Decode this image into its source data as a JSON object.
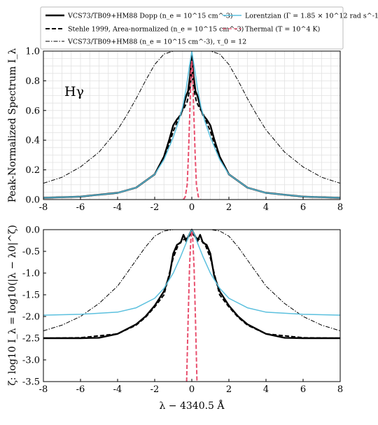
{
  "chart_data": [
    {
      "type": "line",
      "annotation": "Hγ",
      "xlabel": "",
      "ylabel": "Peak-Normalized Spectrum I_λ",
      "xlim": [
        -8,
        8
      ],
      "ylim": [
        0,
        1
      ],
      "xticks": [
        "-8",
        "-6",
        "-4",
        "-2",
        "0",
        "2",
        "4",
        "6",
        "8"
      ],
      "yticks": [
        "0.0",
        "0.2",
        "0.4",
        "0.6",
        "0.8",
        "1.0"
      ],
      "grid": true,
      "series": [
        {
          "name": "VCS73/TB09+HM88 Dopp (n_e = 10^15 cm^-3)",
          "color": "#000000",
          "style": "solid-thick",
          "x": [
            -8,
            -6,
            -4,
            -3,
            -2,
            -1.5,
            -1.2,
            -1.0,
            -0.8,
            -0.6,
            -0.45,
            -0.3,
            -0.2,
            -0.1,
            -0.05,
            0,
            0.05,
            0.1,
            0.2,
            0.3,
            0.45,
            0.6,
            0.8,
            1.0,
            1.2,
            1.5,
            2,
            3,
            4,
            6,
            8
          ],
          "y": [
            0.012,
            0.02,
            0.045,
            0.08,
            0.17,
            0.29,
            0.41,
            0.5,
            0.54,
            0.57,
            0.63,
            0.7,
            0.73,
            0.83,
            0.9,
            0.97,
            0.9,
            0.83,
            0.73,
            0.7,
            0.63,
            0.57,
            0.54,
            0.5,
            0.41,
            0.29,
            0.17,
            0.08,
            0.045,
            0.02,
            0.012
          ]
        },
        {
          "name": "Stehle 1999, Area-normalized (n_e = 10^15 cm^-3)",
          "color": "#000000",
          "style": "dashed",
          "x": [
            -8,
            -6,
            -4,
            -3,
            -2,
            -1.5,
            -1.2,
            -1.0,
            -0.8,
            -0.6,
            -0.4,
            -0.25,
            -0.1,
            0,
            0.1,
            0.25,
            0.4,
            0.6,
            0.8,
            1.0,
            1.2,
            1.5,
            2,
            3,
            4,
            6,
            8
          ],
          "y": [
            0.012,
            0.02,
            0.045,
            0.08,
            0.17,
            0.28,
            0.38,
            0.46,
            0.52,
            0.58,
            0.62,
            0.66,
            0.75,
            0.86,
            0.75,
            0.66,
            0.62,
            0.58,
            0.52,
            0.46,
            0.38,
            0.28,
            0.17,
            0.08,
            0.045,
            0.02,
            0.012
          ]
        },
        {
          "name": "VCS73/TB09+HM88 (n_e = 10^15 cm^-3), τ_0 = 12",
          "color": "#000000",
          "style": "dashdot",
          "x": [
            -8,
            -7,
            -6,
            -5,
            -4,
            -3.5,
            -3,
            -2.5,
            -2,
            -1.5,
            -1,
            -0.5,
            0,
            0.5,
            1,
            1.5,
            2,
            2.5,
            3,
            3.5,
            4,
            5,
            6,
            7,
            8
          ],
          "y": [
            0.11,
            0.15,
            0.22,
            0.32,
            0.47,
            0.57,
            0.68,
            0.8,
            0.91,
            0.98,
            1.0,
            1.0,
            1.0,
            1.0,
            1.0,
            0.98,
            0.91,
            0.8,
            0.68,
            0.57,
            0.47,
            0.32,
            0.22,
            0.15,
            0.11
          ]
        },
        {
          "name": "Lorentzian (Γ = 1.85 × 10^12 rad s^-1)",
          "color": "#5bc0de",
          "style": "solid",
          "x": [
            -8,
            -6,
            -4,
            -3,
            -2,
            -1.5,
            -1,
            -0.7,
            -0.5,
            -0.3,
            -0.15,
            0,
            0.15,
            0.3,
            0.5,
            0.7,
            1,
            1.5,
            2,
            3,
            4,
            6,
            8
          ],
          "y": [
            0.012,
            0.02,
            0.045,
            0.08,
            0.17,
            0.27,
            0.42,
            0.53,
            0.62,
            0.75,
            0.88,
            1.0,
            0.88,
            0.75,
            0.62,
            0.53,
            0.42,
            0.27,
            0.17,
            0.08,
            0.045,
            0.02,
            0.012
          ]
        },
        {
          "name": "Thermal (T = 10^4 K)",
          "color": "#e8506e",
          "style": "dashed",
          "x": [
            -0.45,
            -0.35,
            -0.25,
            -0.18,
            -0.1,
            -0.05,
            0,
            0.05,
            0.1,
            0.18,
            0.25,
            0.35,
            0.45
          ],
          "y": [
            0.0,
            0.02,
            0.1,
            0.3,
            0.62,
            0.85,
            0.93,
            0.85,
            0.62,
            0.3,
            0.1,
            0.02,
            0.0
          ]
        }
      ]
    },
    {
      "type": "line",
      "xlabel": "λ − 4340.5 Å",
      "ylabel": "ζ: log10 I_λ = log10(|λ − λ0|^ζ)",
      "xlim": [
        -8,
        8
      ],
      "ylim": [
        -3.5,
        0
      ],
      "xticks": [
        "-8",
        "-6",
        "-4",
        "-2",
        "0",
        "2",
        "4",
        "6",
        "8"
      ],
      "yticks": [
        "0.0",
        "-0.5",
        "-1.0",
        "-1.5",
        "-2.0",
        "-2.5",
        "-3.0",
        "-3.5"
      ],
      "grid": false,
      "series": [
        {
          "name": "VCS73/TB09+HM88 Dopp (n_e = 10^15 cm^-3)",
          "color": "#000000",
          "style": "solid-thick",
          "x": [
            -8,
            -6,
            -5,
            -4,
            -3,
            -2.5,
            -2,
            -1.5,
            -1.2,
            -1.0,
            -0.8,
            -0.6,
            -0.45,
            -0.3,
            -0.2,
            -0.1,
            0,
            0.1,
            0.2,
            0.3,
            0.45,
            0.6,
            0.8,
            1.0,
            1.2,
            1.5,
            2,
            2.5,
            3,
            4,
            5,
            6,
            8
          ],
          "y": [
            -2.5,
            -2.5,
            -2.49,
            -2.4,
            -2.18,
            -2.0,
            -1.75,
            -1.42,
            -1.05,
            -0.55,
            -0.35,
            -0.3,
            -0.12,
            -0.27,
            -0.17,
            -0.08,
            0.0,
            -0.08,
            -0.17,
            -0.27,
            -0.12,
            -0.3,
            -0.35,
            -0.55,
            -1.05,
            -1.42,
            -1.75,
            -2.0,
            -2.18,
            -2.4,
            -2.49,
            -2.5,
            -2.5
          ]
        },
        {
          "name": "Stehle 1999, Area-normalized (n_e = 10^15 cm^-3)",
          "color": "#000000",
          "style": "dashed",
          "x": [
            -8,
            -6,
            -4,
            -3,
            -2.5,
            -2,
            -1.5,
            -1.0,
            -0.7,
            -0.4,
            -0.2,
            0,
            0.2,
            0.4,
            0.7,
            1.0,
            1.5,
            2,
            2.5,
            3,
            4,
            6,
            8
          ],
          "y": [
            -2.5,
            -2.49,
            -2.4,
            -2.2,
            -2.02,
            -1.78,
            -1.5,
            -0.65,
            -0.32,
            -0.22,
            -0.18,
            -0.06,
            -0.18,
            -0.22,
            -0.32,
            -0.65,
            -1.5,
            -1.78,
            -2.02,
            -2.2,
            -2.4,
            -2.49,
            -2.5
          ]
        },
        {
          "name": "VCS73/TB09+HM88 (n_e = 10^15 cm^-3), τ_0 = 12",
          "color": "#000000",
          "style": "dashdot",
          "x": [
            -8,
            -7,
            -6,
            -5,
            -4,
            -3.5,
            -3,
            -2.5,
            -2,
            -1.5,
            -1,
            0,
            1,
            1.5,
            2,
            2.5,
            3,
            3.5,
            4,
            5,
            6,
            7,
            8
          ],
          "y": [
            -2.33,
            -2.2,
            -2.0,
            -1.7,
            -1.3,
            -1.0,
            -0.7,
            -0.4,
            -0.15,
            -0.03,
            0.0,
            0.0,
            0.0,
            -0.03,
            -0.15,
            -0.4,
            -0.7,
            -1.0,
            -1.3,
            -1.7,
            -2.0,
            -2.2,
            -2.33
          ]
        },
        {
          "name": "Lorentzian (Γ = 1.85 × 10^12 rad s^-1)",
          "color": "#5bc0de",
          "style": "solid",
          "x": [
            -8,
            -6,
            -4,
            -3,
            -2,
            -1.5,
            -1,
            -0.6,
            -0.3,
            -0.15,
            0,
            0.15,
            0.3,
            0.6,
            1,
            1.5,
            2,
            3,
            4,
            6,
            8
          ],
          "y": [
            -1.97,
            -1.95,
            -1.9,
            -1.8,
            -1.58,
            -1.35,
            -1.0,
            -0.62,
            -0.3,
            -0.12,
            0.0,
            -0.12,
            -0.3,
            -0.62,
            -1.0,
            -1.35,
            -1.58,
            -1.8,
            -1.9,
            -1.95,
            -1.97
          ]
        },
        {
          "name": "Thermal (T = 10^4 K)",
          "color": "#e8506e",
          "style": "dashed",
          "x": [
            -0.28,
            -0.2,
            -0.12,
            -0.05,
            0,
            0.05,
            0.12,
            0.2,
            0.28
          ],
          "y": [
            -3.5,
            -2.1,
            -0.85,
            -0.2,
            -0.03,
            -0.2,
            -0.85,
            -2.1,
            -3.5
          ]
        }
      ]
    }
  ]
}
